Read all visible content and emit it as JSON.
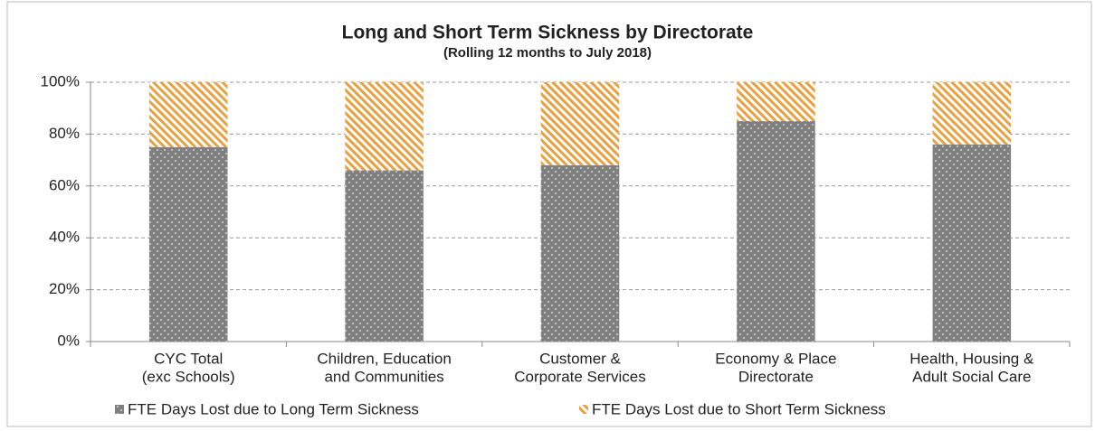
{
  "chart_data": {
    "type": "stacked_bar",
    "title": "Long and Short Term Sickness by Directorate",
    "subtitle": "(Rolling 12 months to July 2018)",
    "categories": [
      [
        "CYC Total",
        "(exc Schools)"
      ],
      [
        "Children, Education",
        "and Communities"
      ],
      [
        "Customer &",
        "Corporate Services"
      ],
      [
        "Economy & Place",
        "Directorate"
      ],
      [
        "Health, Housing &",
        "Adult Social Care"
      ]
    ],
    "series": [
      {
        "name": "FTE Days Lost due to Long Term Sickness",
        "color": "#808080",
        "values": [
          75,
          66,
          68,
          85,
          76
        ]
      },
      {
        "name": "FTE Days Lost due to Short Term Sickness",
        "color": "#e8a040",
        "values": [
          25,
          34,
          32,
          15,
          24
        ]
      }
    ],
    "ylim": [
      0,
      100
    ],
    "yticks": [
      {
        "value": 0,
        "label": "0%"
      },
      {
        "value": 20,
        "label": "20%"
      },
      {
        "value": 40,
        "label": "40%"
      },
      {
        "value": 60,
        "label": "60%"
      },
      {
        "value": 80,
        "label": "80%"
      },
      {
        "value": 100,
        "label": "100%"
      }
    ],
    "grid": true,
    "legend": "bottom"
  }
}
